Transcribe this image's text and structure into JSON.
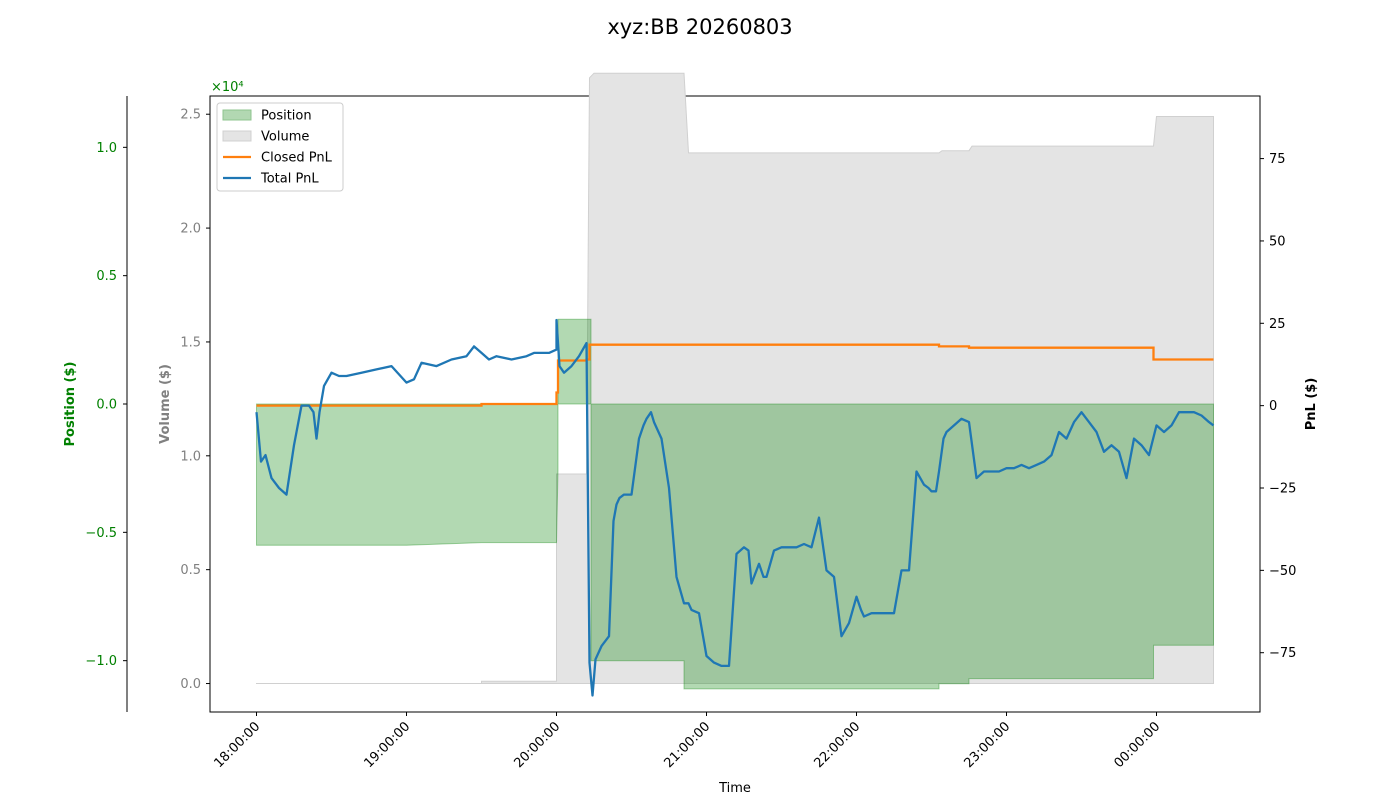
{
  "chart_data": {
    "type": "line",
    "title": "xyz:BB 20260803",
    "xlabel": "Time",
    "x_ticks": [
      "18:00:00",
      "19:00:00",
      "20:00:00",
      "21:00:00",
      "22:00:00",
      "23:00:00",
      "00:00:00"
    ],
    "x_range_hours": [
      17.69,
      24.69
    ],
    "axes": {
      "position": {
        "label": "Position ($)",
        "color": "#008000",
        "range": [
          -1.2,
          1.2
        ],
        "ticks": [
          1.0,
          0.5,
          0.0,
          -0.5,
          -1.0
        ],
        "tick_labels": [
          "1.0",
          "0.5",
          "0.0",
          "−0.5",
          "−1.0"
        ],
        "scale_note": "×10⁴"
      },
      "volume": {
        "label": "Volume ($)",
        "color": "#808080",
        "range": [
          -1250,
          25800
        ],
        "ticks": [
          25000,
          20000,
          15000,
          10000,
          5000,
          0
        ],
        "tick_labels": [
          "2.5",
          "2.0",
          "1.5",
          "1.0",
          "0.5",
          "0.0"
        ]
      },
      "pnl": {
        "label": "PnL ($)",
        "color": "#000000",
        "range": [
          -93,
          94
        ],
        "ticks": [
          75,
          50,
          25,
          0,
          -25,
          -50,
          -75
        ],
        "tick_labels": [
          "75",
          "50",
          "25",
          "0",
          "−25",
          "−50",
          "−75"
        ]
      }
    },
    "legend": {
      "placement": "top-left",
      "entries": [
        {
          "label": "Position",
          "kind": "patch",
          "color": "#b2d8b2"
        },
        {
          "label": "Volume",
          "kind": "patch",
          "color": "#e4e4e4"
        },
        {
          "label": "Closed PnL",
          "kind": "line",
          "color": "#ff7f0e"
        },
        {
          "label": "Total PnL",
          "kind": "line",
          "color": "#1f77b4"
        }
      ]
    },
    "series": {
      "position": {
        "name": "Position",
        "x": [
          18.0,
          18.08,
          18.4,
          19.0,
          19.5,
          20.0,
          20.01,
          20.01,
          20.23,
          20.23,
          20.85,
          20.85,
          22.55,
          22.55,
          22.75,
          22.75,
          23.98,
          23.98,
          24.38
        ],
        "y": [
          -0.55,
          -0.55,
          -0.55,
          -0.55,
          -0.54,
          -0.54,
          -0.26,
          0.33,
          0.33,
          -1.0,
          -1.0,
          -1.11,
          -1.11,
          -1.09,
          -1.09,
          -1.07,
          -1.07,
          -0.94,
          -0.94
        ]
      },
      "volume": {
        "name": "Volume",
        "x": [
          18.0,
          19.5,
          19.5,
          20.0,
          20.0,
          20.02,
          20.05,
          20.2,
          20.22,
          20.25,
          20.85,
          20.88,
          22.55,
          22.57,
          22.75,
          22.77,
          23.98,
          24.0,
          24.38
        ],
        "y": [
          0,
          0,
          100,
          100,
          9200,
          9200,
          9200,
          9200,
          26600,
          26800,
          26800,
          23300,
          23300,
          23400,
          23400,
          23600,
          23600,
          24900,
          24900
        ]
      },
      "closed_pnl": {
        "name": "Closed PnL",
        "x": [
          18.0,
          19.5,
          19.5,
          20.0,
          20.0,
          20.01,
          20.01,
          20.2,
          20.2,
          20.22,
          20.22,
          22.55,
          22.55,
          22.75,
          22.75,
          23.98,
          23.98,
          24.38
        ],
        "y": [
          0,
          0,
          0.5,
          0.5,
          4,
          4,
          13.7,
          13.7,
          14,
          14,
          18.5,
          18.5,
          18,
          18,
          17.6,
          17.6,
          14,
          14
        ]
      },
      "total_pnl": {
        "name": "Total PnL",
        "x": [
          18.0,
          18.03,
          18.06,
          18.1,
          18.15,
          18.2,
          18.25,
          18.3,
          18.35,
          18.38,
          18.4,
          18.42,
          18.45,
          18.5,
          18.55,
          18.6,
          18.7,
          18.8,
          18.9,
          19.0,
          19.05,
          19.1,
          19.2,
          19.3,
          19.4,
          19.45,
          19.5,
          19.55,
          19.6,
          19.7,
          19.8,
          19.85,
          19.9,
          19.95,
          20.0,
          20.0,
          20.02,
          20.05,
          20.1,
          20.15,
          20.2,
          20.22,
          20.24,
          20.26,
          20.3,
          20.35,
          20.38,
          20.4,
          20.42,
          20.45,
          20.5,
          20.55,
          20.58,
          20.6,
          20.63,
          20.65,
          20.7,
          20.75,
          20.8,
          20.85,
          20.88,
          20.9,
          20.95,
          21.0,
          21.05,
          21.1,
          21.15,
          21.2,
          21.25,
          21.28,
          21.3,
          21.35,
          21.38,
          21.4,
          21.45,
          21.5,
          21.55,
          21.6,
          21.65,
          21.7,
          21.75,
          21.8,
          21.85,
          21.9,
          21.95,
          22.0,
          22.03,
          22.05,
          22.1,
          22.15,
          22.2,
          22.25,
          22.3,
          22.35,
          22.4,
          22.45,
          22.48,
          22.5,
          22.53,
          22.55,
          22.58,
          22.6,
          22.65,
          22.7,
          22.75,
          22.8,
          22.85,
          22.9,
          22.95,
          23.0,
          23.05,
          23.1,
          23.15,
          23.2,
          23.25,
          23.3,
          23.35,
          23.4,
          23.45,
          23.5,
          23.55,
          23.6,
          23.65,
          23.7,
          23.75,
          23.8,
          23.85,
          23.9,
          23.95,
          24.0,
          24.05,
          24.1,
          24.15,
          24.2,
          24.25,
          24.3,
          24.35,
          24.38
        ],
        "y": [
          -2,
          -17,
          -15,
          -22,
          -25,
          -27,
          -12,
          0,
          0,
          -2,
          -10,
          -2,
          6,
          10,
          9,
          9,
          10,
          11,
          12,
          7,
          8,
          13,
          12,
          14,
          15,
          18,
          16,
          14,
          15,
          14,
          15,
          16,
          16,
          16,
          17,
          26,
          12,
          10,
          12,
          15,
          19,
          -78,
          -88,
          -77,
          -73,
          -70,
          -35,
          -30,
          -28,
          -27,
          -27,
          -10,
          -6,
          -4,
          -2,
          -5,
          -10,
          -25,
          -52,
          -60,
          -60,
          -62,
          -63,
          -76,
          -78,
          -79,
          -79,
          -45,
          -43,
          -44,
          -54,
          -48,
          -52,
          -52,
          -44,
          -43,
          -43,
          -43,
          -42,
          -43,
          -34,
          -50,
          -52,
          -70,
          -66,
          -58,
          -62,
          -64,
          -63,
          -63,
          -63,
          -63,
          -50,
          -50,
          -20,
          -24,
          -25,
          -26,
          -26,
          -20,
          -10,
          -8,
          -6,
          -4,
          -5,
          -22,
          -20,
          -20,
          -20,
          -19,
          -19,
          -18,
          -19,
          -18,
          -17,
          -15,
          -8,
          -10,
          -5,
          -2,
          -5,
          -8,
          -14,
          -12,
          -14,
          -22,
          -10,
          -12,
          -15,
          -6,
          -8,
          -6,
          -2,
          -2,
          -2,
          -3,
          -5,
          -6
        ]
      }
    }
  }
}
